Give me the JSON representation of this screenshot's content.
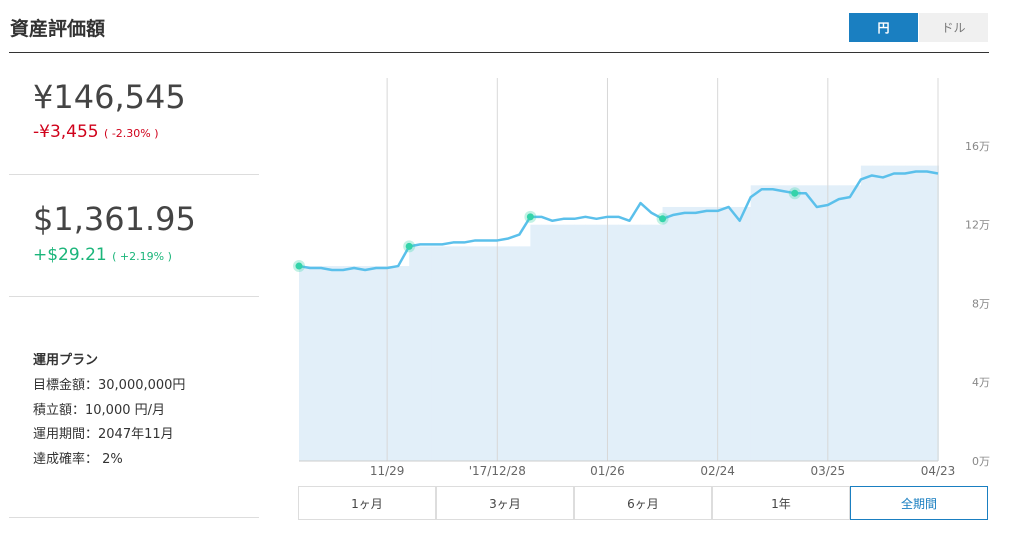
{
  "header": {
    "title": "資産評価額",
    "currency_toggle": {
      "options": [
        "円",
        "ドル"
      ],
      "active": 0
    }
  },
  "summary": {
    "jpy": {
      "value": "¥146,545",
      "change": "-¥3,455",
      "change_pct": "( -2.30% )"
    },
    "usd": {
      "value": "$1,361.95",
      "change": "+$29.21",
      "change_pct": "( +2.19% )"
    }
  },
  "plan": {
    "title": "運用プラン",
    "lines": [
      "目標金額：30,000,000円",
      "積立額：10,000 円/月",
      "運用期間：2047年11月",
      "達成確率： 2%"
    ]
  },
  "chart_data": {
    "type": "line",
    "categories": [
      null,
      null,
      null,
      null,
      null,
      null,
      null,
      null,
      "11/29",
      null,
      null,
      null,
      null,
      null,
      null,
      null,
      null,
      null,
      "'17/12/28",
      null,
      null,
      null,
      null,
      null,
      null,
      null,
      null,
      null,
      "01/26",
      null,
      null,
      null,
      null,
      null,
      null,
      null,
      null,
      null,
      "02/24",
      null,
      null,
      null,
      null,
      null,
      null,
      null,
      null,
      null,
      "03/25",
      null,
      null,
      null,
      null,
      null,
      null,
      null,
      null,
      null,
      "04/23"
    ],
    "series": [
      {
        "color": "#5bc0eb",
        "marker_color": "#34d3a9",
        "marker_indices": [
          0,
          10,
          21,
          33,
          45
        ],
        "values": [
          9.9,
          9.8,
          9.8,
          9.7,
          9.7,
          9.8,
          9.7,
          9.8,
          9.8,
          9.9,
          10.9,
          11.0,
          11.0,
          11.0,
          11.1,
          11.1,
          11.2,
          11.2,
          11.2,
          11.3,
          11.5,
          12.4,
          12.4,
          12.2,
          12.3,
          12.3,
          12.4,
          12.3,
          12.4,
          12.4,
          12.2,
          13.1,
          12.6,
          12.3,
          12.5,
          12.6,
          12.6,
          12.7,
          12.7,
          12.9,
          12.2,
          13.4,
          13.8,
          13.8,
          13.7,
          13.6,
          13.6,
          12.9,
          13.0,
          13.3,
          13.4,
          14.3,
          14.5,
          14.4,
          14.6,
          14.6,
          14.7,
          14.7,
          14.6
        ]
      },
      {
        "type": "step-area",
        "color": "#e2eff9",
        "values": [
          9.9,
          9.9,
          9.9,
          9.9,
          9.9,
          9.9,
          9.9,
          9.9,
          9.9,
          9.9,
          10.9,
          10.9,
          10.9,
          10.9,
          10.9,
          10.9,
          10.9,
          10.9,
          10.9,
          10.9,
          10.9,
          12.0,
          12.0,
          12.0,
          12.0,
          12.0,
          12.0,
          12.0,
          12.0,
          12.0,
          12.0,
          12.0,
          12.0,
          12.9,
          12.9,
          12.9,
          12.9,
          12.9,
          12.9,
          12.9,
          12.9,
          14.0,
          14.0,
          14.0,
          14.0,
          14.0,
          14.0,
          14.0,
          14.0,
          14.0,
          14.0,
          15.0,
          15.0,
          15.0,
          15.0,
          15.0,
          15.0,
          15.0,
          15.0
        ]
      }
    ],
    "ylim": [
      0,
      19.45
    ],
    "yticks": [
      {
        "value": 0,
        "label": "0万"
      },
      {
        "value": 4,
        "label": "4万"
      },
      {
        "value": 8,
        "label": "8万"
      },
      {
        "value": 12,
        "label": "12万"
      },
      {
        "value": 16,
        "label": "16万"
      }
    ],
    "grid": true
  },
  "period_buttons": {
    "options": [
      "1ヶ月",
      "3ヶ月",
      "6ヶ月",
      "1年",
      "全期間"
    ],
    "active": 4
  }
}
